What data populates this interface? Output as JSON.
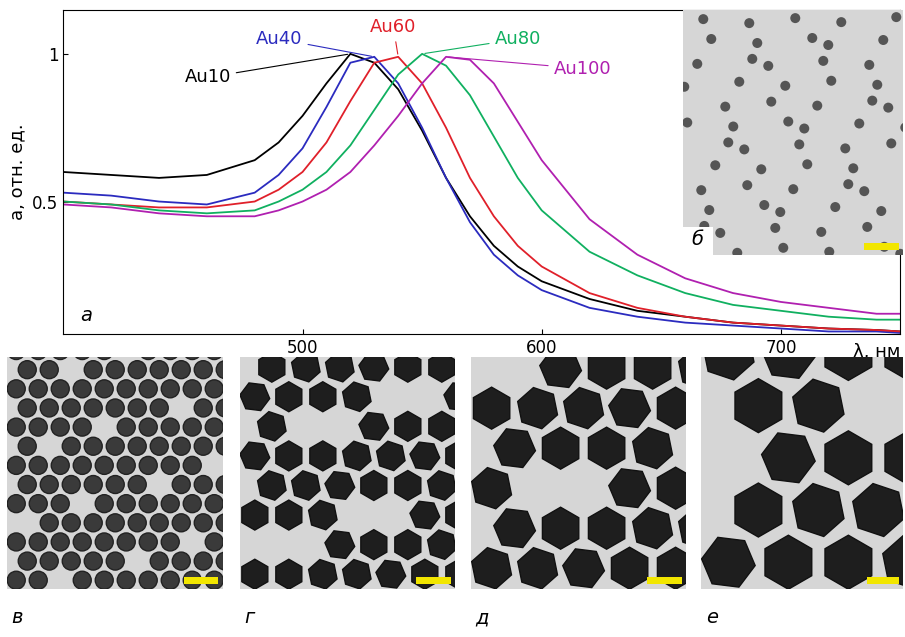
{
  "chart_data": {
    "type": "line",
    "panel_label": "а",
    "xlabel": "λ, нм",
    "ylabel": "a, отн. ед.",
    "x": [
      400,
      420,
      440,
      460,
      480,
      490,
      500,
      510,
      520,
      530,
      540,
      550,
      560,
      570,
      580,
      590,
      600,
      620,
      640,
      660,
      680,
      700,
      720,
      740,
      750
    ],
    "xlim": [
      400,
      750
    ],
    "xticks": [
      500,
      600,
      700
    ],
    "ylim": [
      0.05,
      1.15
    ],
    "yticks": [
      0.5,
      1
    ],
    "grid": false,
    "series": [
      {
        "name": "Au10",
        "color": "#000000",
        "values": [
          0.6,
          0.59,
          0.58,
          0.59,
          0.64,
          0.7,
          0.79,
          0.9,
          1.0,
          0.97,
          0.88,
          0.74,
          0.58,
          0.45,
          0.35,
          0.28,
          0.23,
          0.17,
          0.13,
          0.11,
          0.09,
          0.08,
          0.07,
          0.065,
          0.06
        ]
      },
      {
        "name": "Au40",
        "color": "#2b2bbf",
        "values": [
          0.53,
          0.52,
          0.5,
          0.49,
          0.53,
          0.59,
          0.68,
          0.82,
          0.97,
          0.99,
          0.9,
          0.75,
          0.58,
          0.43,
          0.32,
          0.25,
          0.2,
          0.14,
          0.11,
          0.09,
          0.08,
          0.07,
          0.06,
          0.06,
          0.055
        ]
      },
      {
        "name": "Au60",
        "color": "#e0202a",
        "values": [
          0.5,
          0.49,
          0.48,
          0.48,
          0.5,
          0.54,
          0.6,
          0.7,
          0.84,
          0.97,
          0.99,
          0.9,
          0.75,
          0.58,
          0.45,
          0.35,
          0.28,
          0.19,
          0.14,
          0.11,
          0.09,
          0.08,
          0.07,
          0.065,
          0.06
        ]
      },
      {
        "name": "Au80",
        "color": "#10b060",
        "values": [
          0.5,
          0.49,
          0.47,
          0.46,
          0.47,
          0.5,
          0.54,
          0.6,
          0.69,
          0.81,
          0.93,
          1.0,
          0.96,
          0.86,
          0.72,
          0.58,
          0.47,
          0.33,
          0.25,
          0.19,
          0.15,
          0.13,
          0.11,
          0.1,
          0.1
        ]
      },
      {
        "name": "Au100",
        "color": "#b020b0",
        "values": [
          0.49,
          0.48,
          0.46,
          0.45,
          0.45,
          0.47,
          0.5,
          0.54,
          0.6,
          0.69,
          0.79,
          0.9,
          0.99,
          0.98,
          0.9,
          0.77,
          0.64,
          0.44,
          0.32,
          0.24,
          0.19,
          0.16,
          0.14,
          0.12,
          0.12
        ]
      }
    ]
  },
  "images": [
    {
      "label": "б"
    },
    {
      "label": "в"
    },
    {
      "label": "г"
    },
    {
      "label": "д"
    },
    {
      "label": "е"
    }
  ]
}
